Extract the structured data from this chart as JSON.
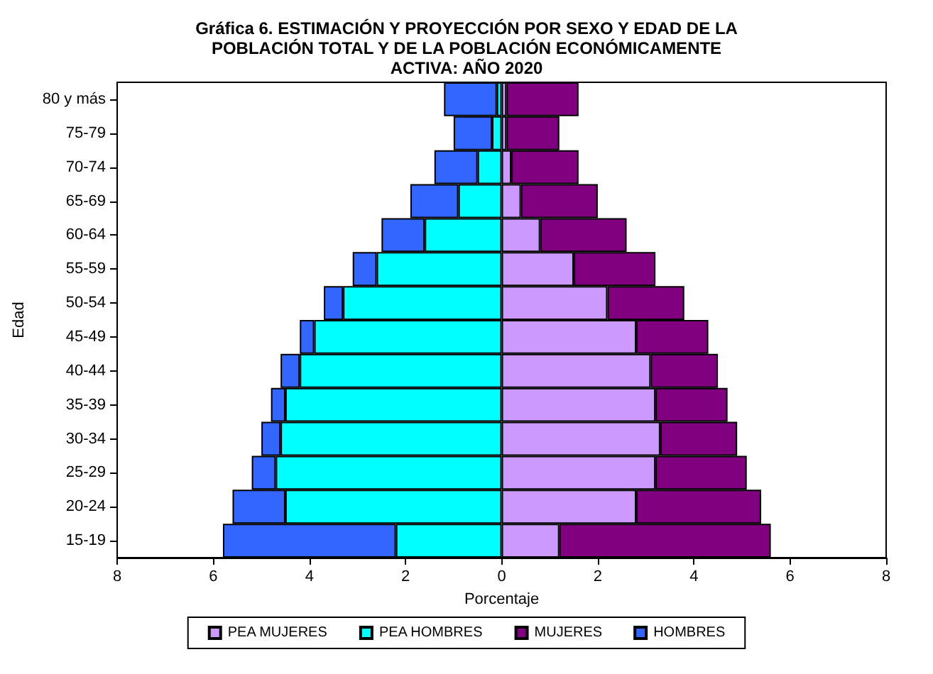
{
  "chart_data": {
    "type": "bar",
    "orientation": "horizontal",
    "stacked": true,
    "title": "Gráfica 6. ESTIMACIÓN Y PROYECCIÓN POR SEXO Y EDAD DE LA\nPOBLACIÓN TOTAL Y DE LA POBLACIÓN ECONÓMICAMENTE\nACTIVA: AÑO 2020",
    "xlabel": "Porcentaje",
    "ylabel": "Edad",
    "categories": [
      "80 y más",
      "75-79",
      "70-74",
      "65-69",
      "60-64",
      "55-59",
      "50-54",
      "45-49",
      "40-44",
      "35-39",
      "30-34",
      "25-29",
      "20-24",
      "15-19"
    ],
    "series": [
      {
        "name": "PEA MUJERES",
        "color": "#cc99ff",
        "values": [
          0.1,
          0.1,
          0.2,
          0.4,
          0.8,
          1.5,
          2.2,
          2.8,
          3.1,
          3.2,
          3.3,
          3.2,
          2.8,
          1.2
        ]
      },
      {
        "name": "PEA HOMBRES",
        "color": "#00ffff",
        "values": [
          -0.1,
          -0.2,
          -0.5,
          -0.9,
          -1.6,
          -2.6,
          -3.3,
          -3.9,
          -4.2,
          -4.5,
          -4.6,
          -4.7,
          -4.5,
          -2.2
        ]
      },
      {
        "name": "MUJERES",
        "color": "#800080",
        "values": [
          1.5,
          1.1,
          1.4,
          1.6,
          1.8,
          1.7,
          1.6,
          1.5,
          1.4,
          1.5,
          1.6,
          1.9,
          2.6,
          4.4
        ]
      },
      {
        "name": "HOMBRES",
        "color": "#3366ff",
        "values": [
          -1.1,
          -0.8,
          -0.9,
          -1.0,
          -0.9,
          -0.5,
          -0.4,
          -0.3,
          -0.4,
          -0.3,
          -0.4,
          -0.5,
          -1.1,
          -3.6
        ]
      }
    ],
    "xlim": [
      -8,
      8
    ],
    "xticks": [
      {
        "value": -8,
        "label": "8"
      },
      {
        "value": -6,
        "label": "6"
      },
      {
        "value": -4,
        "label": "4"
      },
      {
        "value": -2,
        "label": "2"
      },
      0,
      2,
      4,
      6,
      8
    ],
    "grid": false,
    "legend": "bottom"
  }
}
